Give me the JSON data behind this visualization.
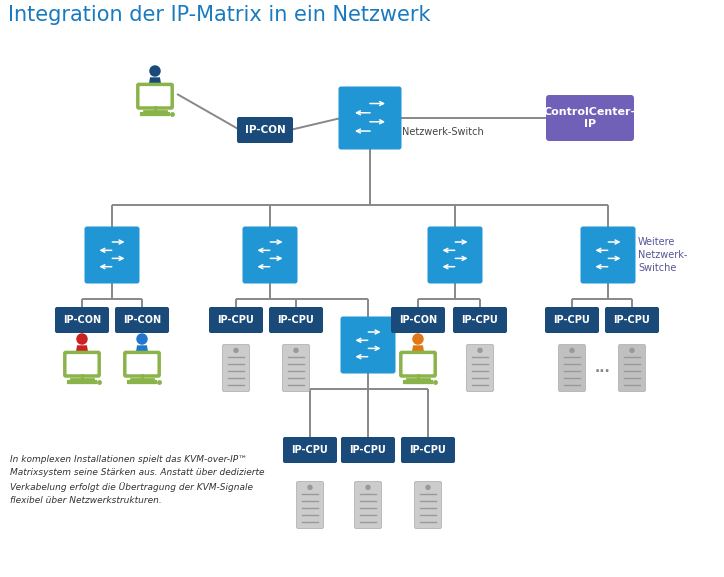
{
  "title": "Integration der IP-Matrix in ein Netzwerk",
  "title_color": "#1a7abf",
  "title_fontsize": 15,
  "bg_color": "#ffffff",
  "switch_color": "#2196d4",
  "switch_dark_color": "#1a4a7a",
  "con_label_color": "#1a4a7a",
  "cpu_label_color": "#1a4a7a",
  "control_center_color": "#7060b8",
  "line_color": "#888888",
  "green_monitor": "#8ab44a",
  "footer_text": "In komplexen Installationen spielt das KVM-over-IP™\nMatrixsystem seine Stärken aus. Anstatt über dedizierte\nVerkabelung erfolgt die Übertragung der KVM-Signale\nflexibel über Netzwerkstrukturen.",
  "netzwerk_switch_label": "Netzwerk-Switch",
  "weitere_label": "Weitere\nNetzwerk-\nSwitche",
  "controlcenter_label": "ControlCenter-\nIP"
}
